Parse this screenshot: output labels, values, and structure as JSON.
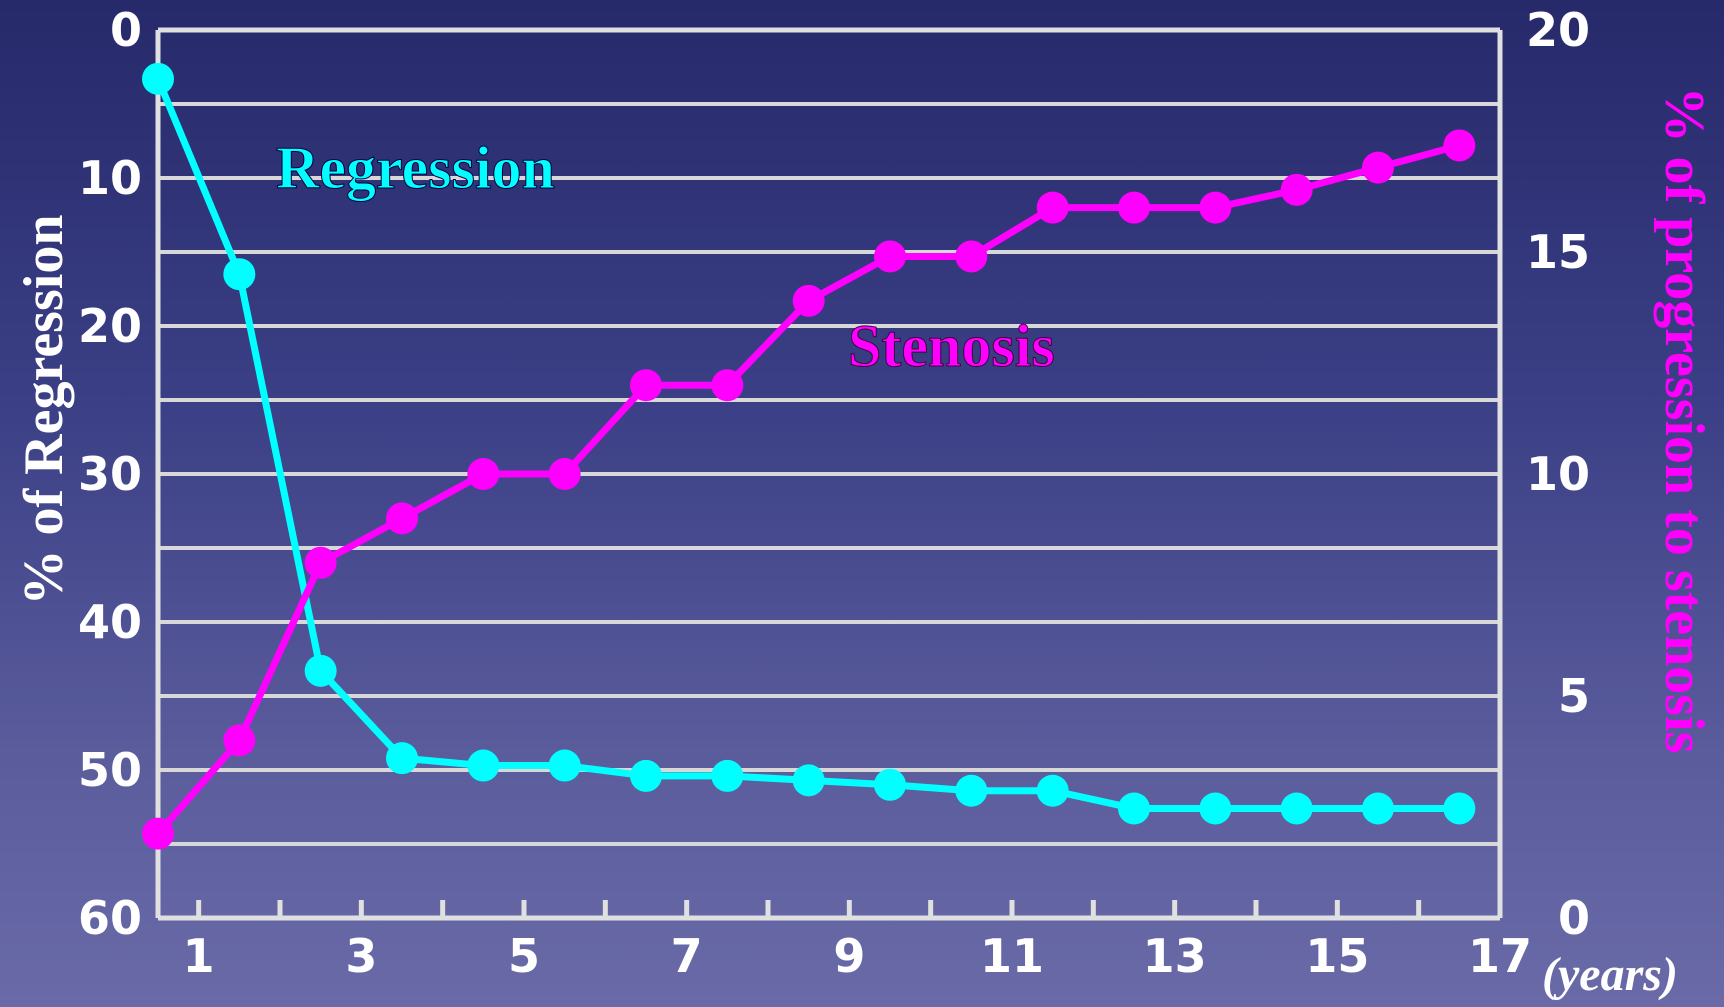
{
  "chart_data": {
    "type": "line",
    "x_axis": {
      "min": 0.5,
      "max": 17,
      "ticks": [
        1,
        3,
        5,
        7,
        9,
        11,
        13,
        15,
        17
      ],
      "units": "(years)"
    },
    "y_left": {
      "label": "% of Regression",
      "min": 0,
      "max": 60,
      "inverted": true,
      "ticks": [
        0,
        10,
        20,
        30,
        40,
        50,
        60
      ]
    },
    "y_right": {
      "label": "% of progression to stenosis",
      "min": 0,
      "max": 20,
      "ticks": [
        0,
        5,
        10,
        15,
        20
      ]
    },
    "grid": true,
    "series": [
      {
        "name": "Regression",
        "axis": "left",
        "color": "#00ffff",
        "x": [
          1,
          2,
          3,
          4,
          5,
          6,
          7,
          8,
          9,
          10,
          11,
          12,
          13,
          14,
          15,
          16,
          17
        ],
        "values": [
          3.3,
          16.5,
          43.3,
          49.2,
          49.7,
          49.7,
          50.4,
          50.4,
          50.7,
          51.0,
          51.4,
          51.4,
          52.6,
          52.6,
          52.6,
          52.6,
          52.6
        ]
      },
      {
        "name": "Stenosis",
        "axis": "right",
        "color": "#ff00ff",
        "x": [
          1,
          2,
          3,
          4,
          5,
          6,
          7,
          8,
          9,
          10,
          11,
          12,
          13,
          14,
          15,
          16,
          17
        ],
        "values": [
          1.9,
          4.0,
          8.0,
          9.0,
          10.0,
          10.0,
          12.0,
          12.0,
          13.9,
          14.9,
          14.9,
          16.0,
          16.0,
          16.0,
          16.4,
          16.9,
          17.4
        ]
      }
    ]
  }
}
